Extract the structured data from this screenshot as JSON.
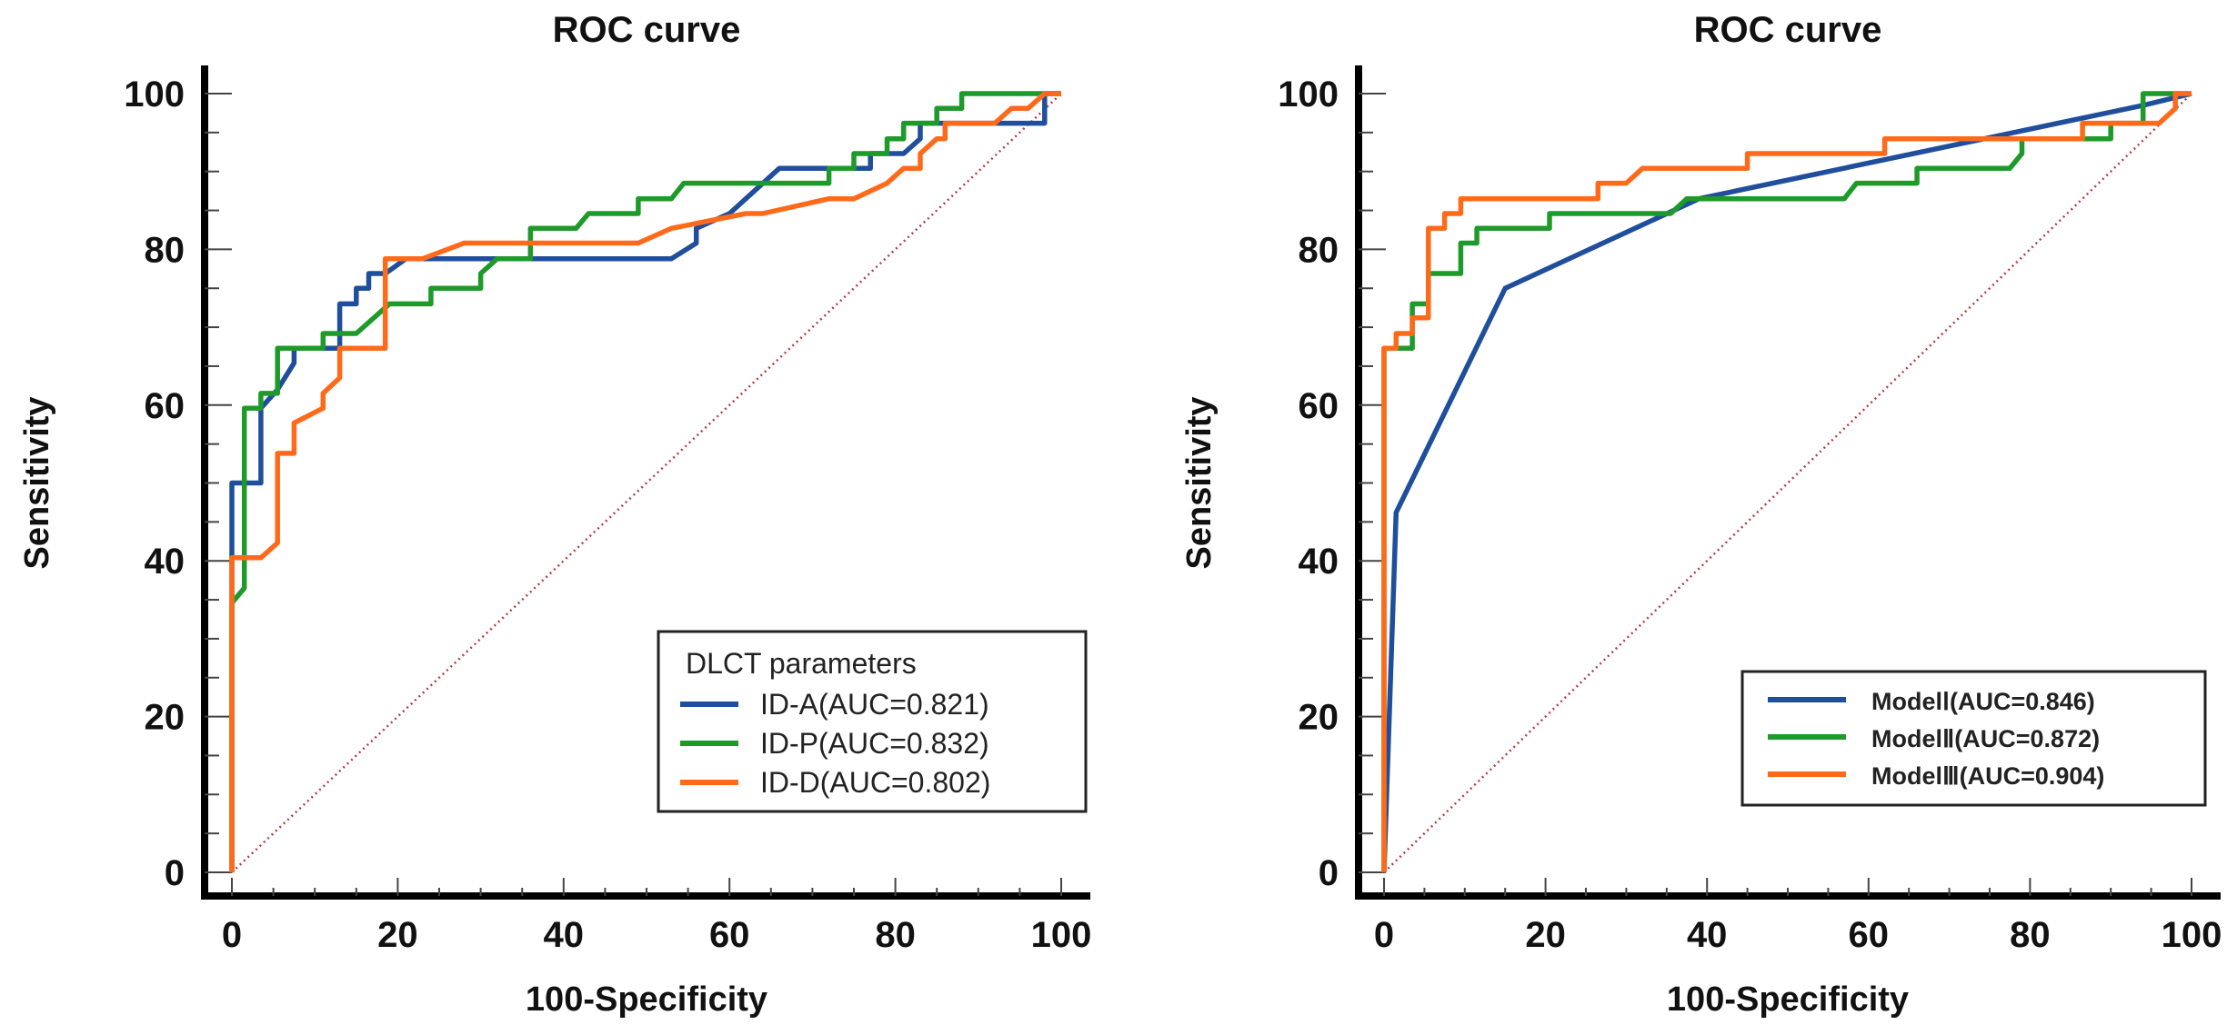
{
  "chart_data": [
    {
      "type": "line",
      "title": "ROC curve",
      "xlabel": "100-Specificity",
      "ylabel": "Sensitivity",
      "xlim": [
        0,
        100
      ],
      "ylim": [
        0,
        100
      ],
      "xticks": [
        "0",
        "20",
        "40",
        "60",
        "80",
        "100"
      ],
      "yticks": [
        "0",
        "20",
        "40",
        "60",
        "80",
        "100"
      ],
      "legend_title": "DLCT parameters",
      "legend_position": "bottom-right",
      "reference_line": "diagonal dotted",
      "series": [
        {
          "name": "ID-A(AUC=0.821)",
          "color": "#1f4e9c",
          "points": [
            [
              0,
              0
            ],
            [
              0,
              50
            ],
            [
              3.5,
              50
            ],
            [
              3.5,
              59.6
            ],
            [
              5.5,
              62
            ],
            [
              7.5,
              65.4
            ],
            [
              7.5,
              67.3
            ],
            [
              13,
              67.3
            ],
            [
              13,
              73
            ],
            [
              15,
              73
            ],
            [
              15,
              75
            ],
            [
              16.5,
              75
            ],
            [
              16.5,
              76.9
            ],
            [
              18.5,
              76.9
            ],
            [
              21,
              78.8
            ],
            [
              53,
              78.8
            ],
            [
              56,
              80.8
            ],
            [
              56,
              82.7
            ],
            [
              60,
              84.6
            ],
            [
              66,
              90.4
            ],
            [
              77,
              90.4
            ],
            [
              77,
              92.3
            ],
            [
              81,
              92.3
            ],
            [
              83,
              94.2
            ],
            [
              83,
              96.2
            ],
            [
              98,
              96.2
            ],
            [
              98,
              100
            ],
            [
              100,
              100
            ]
          ]
        },
        {
          "name": "ID-P(AUC=0.832)",
          "color": "#1e9a2a",
          "points": [
            [
              0,
              0
            ],
            [
              0,
              34.6
            ],
            [
              1.5,
              36.5
            ],
            [
              1.5,
              59.6
            ],
            [
              3.5,
              59.6
            ],
            [
              3.5,
              61.5
            ],
            [
              5.5,
              61.5
            ],
            [
              5.5,
              67.3
            ],
            [
              11,
              67.3
            ],
            [
              11,
              69.2
            ],
            [
              15,
              69.2
            ],
            [
              19,
              73
            ],
            [
              24,
              73
            ],
            [
              24,
              75
            ],
            [
              30,
              75
            ],
            [
              30,
              76.9
            ],
            [
              32,
              78.8
            ],
            [
              36,
              78.8
            ],
            [
              36,
              82.7
            ],
            [
              41.5,
              82.7
            ],
            [
              43,
              84.6
            ],
            [
              49,
              84.6
            ],
            [
              49,
              86.5
            ],
            [
              53,
              86.5
            ],
            [
              54.5,
              88.5
            ],
            [
              72,
              88.5
            ],
            [
              72,
              90.4
            ],
            [
              75,
              90.4
            ],
            [
              75,
              92.3
            ],
            [
              79,
              92.3
            ],
            [
              79,
              94.2
            ],
            [
              81,
              94.2
            ],
            [
              81,
              96.2
            ],
            [
              85,
              96.2
            ],
            [
              85,
              98.1
            ],
            [
              88,
              98.1
            ],
            [
              88,
              100
            ],
            [
              100,
              100
            ]
          ]
        },
        {
          "name": "ID-D(AUC=0.802)",
          "color": "#ff6a1a",
          "points": [
            [
              0,
              0
            ],
            [
              0,
              40.4
            ],
            [
              3.5,
              40.4
            ],
            [
              5.5,
              42.3
            ],
            [
              5.5,
              53.8
            ],
            [
              7.5,
              53.8
            ],
            [
              7.5,
              57.7
            ],
            [
              11,
              59.6
            ],
            [
              11,
              61.5
            ],
            [
              13,
              63.5
            ],
            [
              13,
              67.3
            ],
            [
              18.5,
              67.3
            ],
            [
              18.5,
              78.8
            ],
            [
              23,
              78.8
            ],
            [
              28,
              80.8
            ],
            [
              49,
              80.8
            ],
            [
              53,
              82.7
            ],
            [
              62,
              84.6
            ],
            [
              64,
              84.6
            ],
            [
              72,
              86.5
            ],
            [
              75,
              86.5
            ],
            [
              79,
              88.5
            ],
            [
              81,
              90.4
            ],
            [
              83,
              90.4
            ],
            [
              83,
              92.3
            ],
            [
              85,
              94.2
            ],
            [
              86,
              94.2
            ],
            [
              86,
              96.2
            ],
            [
              92,
              96.2
            ],
            [
              94,
              98.1
            ],
            [
              96,
              98.1
            ],
            [
              98,
              100
            ],
            [
              100,
              100
            ]
          ]
        }
      ]
    },
    {
      "type": "line",
      "title": "ROC curve",
      "xlabel": "100-Specificity",
      "ylabel": "Sensitivity",
      "xlim": [
        0,
        100
      ],
      "ylim": [
        0,
        100
      ],
      "xticks": [
        "0",
        "20",
        "40",
        "60",
        "80",
        "100"
      ],
      "yticks": [
        "0",
        "20",
        "40",
        "60",
        "80",
        "100"
      ],
      "legend_position": "bottom-right",
      "reference_line": "diagonal dotted",
      "series": [
        {
          "name": "ModelⅠ(AUC=0.846)",
          "color": "#1f4e9c",
          "points": [
            [
              0,
              0
            ],
            [
              1.5,
              46.2
            ],
            [
              15,
              75
            ],
            [
              39,
              86.5
            ],
            [
              94,
              98.5
            ],
            [
              100,
              100
            ]
          ]
        },
        {
          "name": "ModelⅡ(AUC=0.872)",
          "color": "#1e9a2a",
          "points": [
            [
              0,
              0
            ],
            [
              0,
              67.3
            ],
            [
              3.5,
              67.3
            ],
            [
              3.5,
              73
            ],
            [
              5.5,
              73
            ],
            [
              5.5,
              76.9
            ],
            [
              9.5,
              76.9
            ],
            [
              9.5,
              80.8
            ],
            [
              11.5,
              80.8
            ],
            [
              11.5,
              82.7
            ],
            [
              20.5,
              82.7
            ],
            [
              20.5,
              84.6
            ],
            [
              35.5,
              84.6
            ],
            [
              37.5,
              86.5
            ],
            [
              57,
              86.5
            ],
            [
              58.5,
              88.5
            ],
            [
              66,
              88.5
            ],
            [
              66,
              90.4
            ],
            [
              77.5,
              90.4
            ],
            [
              79,
              92.3
            ],
            [
              79,
              94.2
            ],
            [
              90,
              94.2
            ],
            [
              90,
              96.2
            ],
            [
              94,
              96.2
            ],
            [
              94,
              100
            ],
            [
              100,
              100
            ]
          ]
        },
        {
          "name": "ModelⅢ(AUC=0.904)",
          "color": "#ff6a1a",
          "points": [
            [
              0,
              0
            ],
            [
              0,
              67.3
            ],
            [
              1.5,
              67.3
            ],
            [
              1.5,
              69.2
            ],
            [
              3.5,
              69.2
            ],
            [
              3.5,
              71.2
            ],
            [
              5.5,
              71.2
            ],
            [
              5.5,
              82.7
            ],
            [
              7.5,
              82.7
            ],
            [
              7.5,
              84.6
            ],
            [
              9.5,
              84.6
            ],
            [
              9.5,
              86.5
            ],
            [
              26.5,
              86.5
            ],
            [
              26.5,
              88.5
            ],
            [
              30,
              88.5
            ],
            [
              32,
              90.4
            ],
            [
              45,
              90.4
            ],
            [
              45,
              92.3
            ],
            [
              62,
              92.3
            ],
            [
              62,
              94.2
            ],
            [
              86.5,
              94.2
            ],
            [
              86.5,
              96.2
            ],
            [
              96,
              96.2
            ],
            [
              98,
              98.1
            ],
            [
              98,
              100
            ],
            [
              100,
              100
            ]
          ]
        }
      ]
    }
  ]
}
